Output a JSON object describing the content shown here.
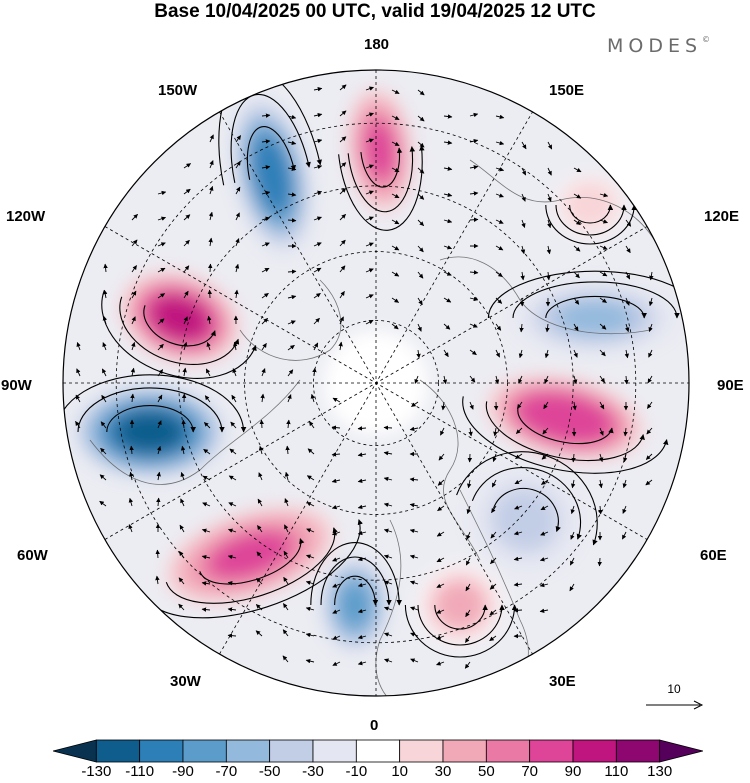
{
  "title": "Base 10/04/2025 00 UTC, valid 19/04/2025 12 UTC",
  "brand": "MODES",
  "brand_mark": "©",
  "longitude_labels": {
    "n180": "180",
    "w150": "150W",
    "e150": "150E",
    "w120": "120W",
    "e120": "120E",
    "w90": "90W",
    "e90": "90E",
    "w60": "60W",
    "e60": "60E",
    "w30": "30W",
    "e30": "30E",
    "s0": "0"
  },
  "reference_vector": {
    "value": "10"
  },
  "colors": {
    "palette": [
      "#08324f",
      "#0e5d8c",
      "#2d7fb8",
      "#5c9ccb",
      "#93b9dd",
      "#c2cde6",
      "#e4e6f1",
      "#ffffff",
      "#f8d5d8",
      "#f1a9b8",
      "#ea7aa5",
      "#de4498",
      "#c0157f",
      "#8e0670",
      "#55005a"
    ],
    "land_outline": "#555555",
    "vector": "#000000"
  },
  "colorbar": {
    "ticks": [
      "-130",
      "-110",
      "-90",
      "-70",
      "-50",
      "-30",
      "-10",
      "10",
      "30",
      "50",
      "70",
      "90",
      "110",
      "130"
    ]
  },
  "chart_data": {
    "type": "heatmap",
    "projection": "north polar stereographic",
    "field": "anomaly (shaded) with wind vectors",
    "contour_levels": [
      -130,
      -110,
      -90,
      -70,
      -50,
      -30,
      -10,
      10,
      30,
      50,
      70,
      90,
      110,
      130
    ],
    "features": [
      {
        "location": "near 145W, mid latitudes",
        "sign": "negative",
        "peak": -100
      },
      {
        "location": "near 175W, subpolar",
        "sign": "positive",
        "peak": 80
      },
      {
        "location": "near 110W, North America",
        "sign": "positive",
        "peak": 110
      },
      {
        "location": "near 80W, eastern Canada",
        "sign": "negative",
        "peak": -120
      },
      {
        "location": "near 55W, North Atlantic",
        "sign": "positive",
        "peak": 80
      },
      {
        "location": "near 10W, eastern Atlantic",
        "sign": "negative",
        "peak": -80
      },
      {
        "location": "near 20E, Europe",
        "sign": "positive",
        "peak": 40
      },
      {
        "location": "near 50E, western Russia",
        "sign": "negative",
        "peak": -40
      },
      {
        "location": "near 90E, Siberia",
        "sign": "positive",
        "peak": 90
      },
      {
        "location": "near 120E, eastern Siberia",
        "sign": "negative",
        "peak": -60
      },
      {
        "location": "near 140E, East Asia",
        "sign": "positive",
        "peak": 30
      }
    ]
  }
}
